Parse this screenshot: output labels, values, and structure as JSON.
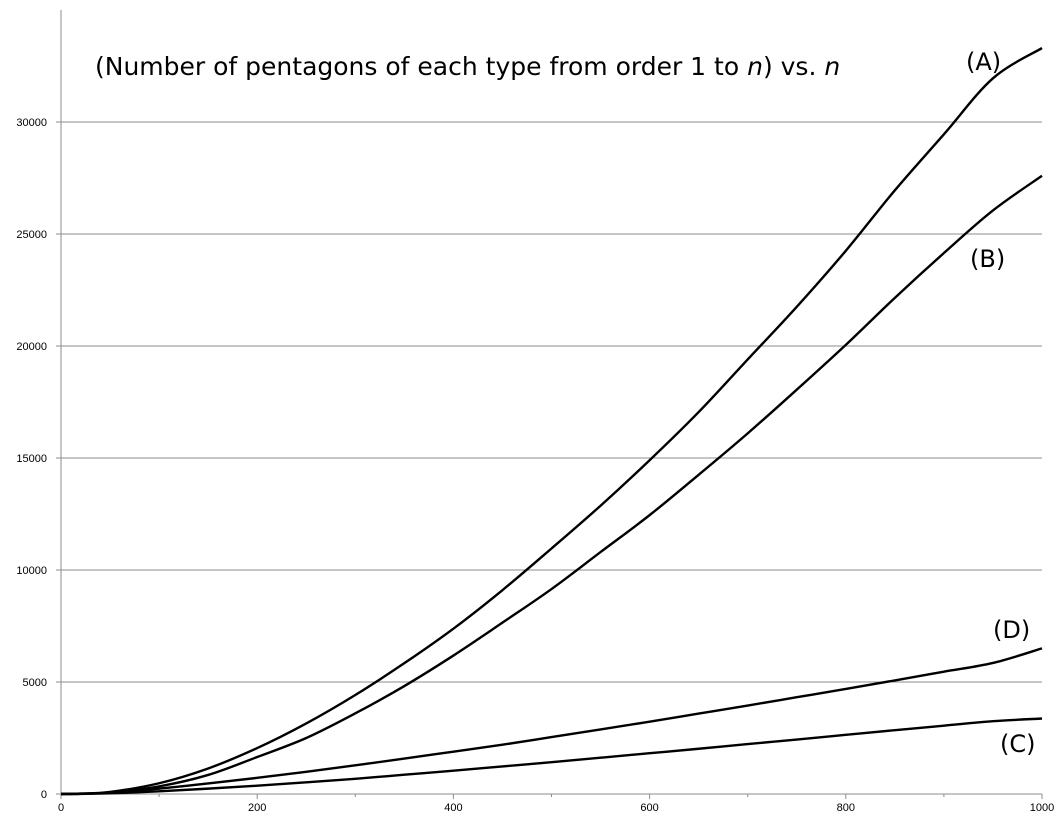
{
  "chart_data": {
    "type": "line",
    "title_parts": [
      {
        "text": "(Number of pentagons of each type from order 1 to ",
        "italic": false
      },
      {
        "text": "n",
        "italic": true
      },
      {
        "text": ")  vs.  ",
        "italic": false
      },
      {
        "text": "n",
        "italic": true
      }
    ],
    "xlim": [
      0,
      1000
    ],
    "ylim": [
      0,
      35000
    ],
    "x_ticks": [
      0,
      200,
      400,
      600,
      800,
      1000
    ],
    "x_minor_ticks": [
      100,
      300,
      500,
      700,
      900
    ],
    "y_ticks": [
      0,
      5000,
      10000,
      15000,
      20000,
      25000,
      30000
    ],
    "grid": true,
    "x": [
      0,
      20,
      50,
      100,
      150,
      200,
      250,
      300,
      350,
      400,
      450,
      500,
      550,
      600,
      650,
      700,
      750,
      800,
      850,
      900,
      950,
      1000
    ],
    "series": [
      {
        "name": "(A)",
        "values": [
          0,
          20,
          90,
          480,
          1140,
          2050,
          3150,
          4420,
          5840,
          7380,
          9100,
          10960,
          12870,
          14900,
          17050,
          19400,
          21750,
          24250,
          26950,
          29450,
          31950,
          33300
        ]
      },
      {
        "name": "(B)",
        "values": [
          0,
          17,
          70,
          340,
          850,
          1650,
          2500,
          3600,
          4820,
          6180,
          7650,
          9150,
          10800,
          12450,
          14250,
          16100,
          18050,
          20050,
          22150,
          24150,
          26050,
          27600
        ]
      },
      {
        "name": "(C)",
        "values": [
          0,
          5,
          30,
          120,
          240,
          370,
          520,
          680,
          860,
          1040,
          1230,
          1420,
          1620,
          1820,
          2020,
          2230,
          2430,
          2640,
          2850,
          3050,
          3250,
          3370
        ]
      },
      {
        "name": "(D)",
        "values": [
          0,
          10,
          60,
          240,
          470,
          720,
          990,
          1280,
          1580,
          1890,
          2200,
          2540,
          2880,
          3230,
          3590,
          3950,
          4320,
          4690,
          5070,
          5460,
          5850,
          6500
        ]
      }
    ]
  }
}
